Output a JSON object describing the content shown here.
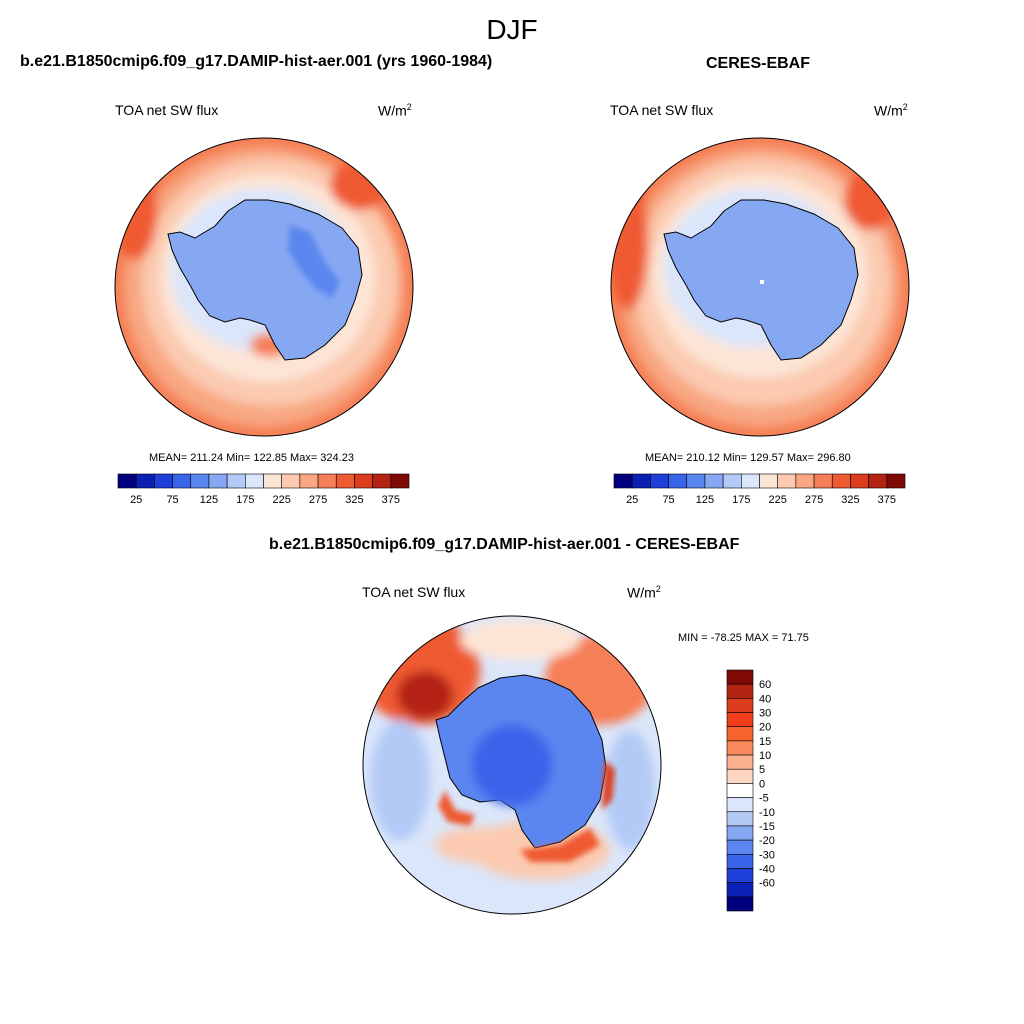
{
  "figure": {
    "title": "DJF"
  },
  "panels": [
    {
      "title": "b.e21.B1850cmip6.f09_g17.DAMIP-hist-aer.001 (yrs 1960-1984)",
      "variable": "TOA net SW flux",
      "units_base": "W/m",
      "units_exp": "2",
      "stats": {
        "mean_label": "MEAN=",
        "mean": "211.24",
        "min_label": "Min=",
        "min": "122.85",
        "max_label": "Max=",
        "max": "324.23"
      },
      "stats_text": "MEAN= 211.24  Min= 122.85  Max= 324.23"
    },
    {
      "title": "CERES-EBAF",
      "variable": "TOA net SW flux",
      "units_base": "W/m",
      "units_exp": "2",
      "stats": {
        "mean_label": "MEAN=",
        "mean": "210.12",
        "min_label": "Min=",
        "min": "129.57",
        "max_label": "Max=",
        "max": "296.80"
      },
      "stats_text": "MEAN= 210.12  Min= 129.57  Max= 296.80"
    },
    {
      "title": "b.e21.B1850cmip6.f09_g17.DAMIP-hist-aer.001 - CERES-EBAF",
      "variable": "TOA net SW flux",
      "units_base": "W/m",
      "units_exp": "2",
      "stats_text": "MIN = -78.25 MAX =  71.75"
    }
  ],
  "colorbars": {
    "abs": {
      "colors": [
        "#00007f",
        "#0a20b5",
        "#1f3fd9",
        "#3a64ea",
        "#5c86ef",
        "#86a8f2",
        "#b3caf6",
        "#dbe6fa",
        "#fde5d6",
        "#fbcab0",
        "#f8a782",
        "#f57f56",
        "#ef5a32",
        "#dc3d1f",
        "#b42412",
        "#7f0a05"
      ],
      "labels": [
        "25",
        "75",
        "125",
        "175",
        "225",
        "275",
        "325",
        "375"
      ]
    },
    "diff": {
      "colors_top_to_bottom": [
        "#7f0a05",
        "#b42412",
        "#dc3d1f",
        "#f23d1a",
        "#f5642d",
        "#f8895c",
        "#fbb08f",
        "#fdd7c4",
        "#ffffff",
        "#dbe6fa",
        "#b3caf6",
        "#86a8f2",
        "#5c86ef",
        "#3a64ea",
        "#1f3fd9",
        "#0a20b5",
        "#00007f"
      ],
      "labels_top_to_bottom": [
        "60",
        "40",
        "30",
        "20",
        "15",
        "10",
        "5",
        "0",
        "-5",
        "-10",
        "-15",
        "-20",
        "-30",
        "-40",
        "-60"
      ]
    }
  },
  "chart_data": [
    {
      "type": "heatmap",
      "title": "b.e21.B1850cmip6.f09_g17.DAMIP-hist-aer.001 (yrs 1960-1984)",
      "variable": "TOA net SW flux",
      "units": "W/m2",
      "projection": "south-polar stereographic",
      "mean": 211.24,
      "min": 122.85,
      "max": 324.23,
      "colorbar_levels": [
        25,
        50,
        75,
        100,
        125,
        150,
        175,
        200,
        225,
        250,
        275,
        300,
        325,
        350,
        375
      ]
    },
    {
      "type": "heatmap",
      "title": "CERES-EBAF",
      "variable": "TOA net SW flux",
      "units": "W/m2",
      "projection": "south-polar stereographic",
      "mean": 210.12,
      "min": 129.57,
      "max": 296.8,
      "colorbar_levels": [
        25,
        50,
        75,
        100,
        125,
        150,
        175,
        200,
        225,
        250,
        275,
        300,
        325,
        350,
        375
      ]
    },
    {
      "type": "heatmap",
      "title": "b.e21.B1850cmip6.f09_g17.DAMIP-hist-aer.001 - CERES-EBAF",
      "variable": "TOA net SW flux",
      "units": "W/m2",
      "projection": "south-polar stereographic",
      "min": -78.25,
      "max": 71.75,
      "colorbar_levels": [
        -60,
        -40,
        -30,
        -20,
        -15,
        -10,
        -5,
        0,
        5,
        10,
        15,
        20,
        30,
        40,
        60
      ]
    }
  ]
}
